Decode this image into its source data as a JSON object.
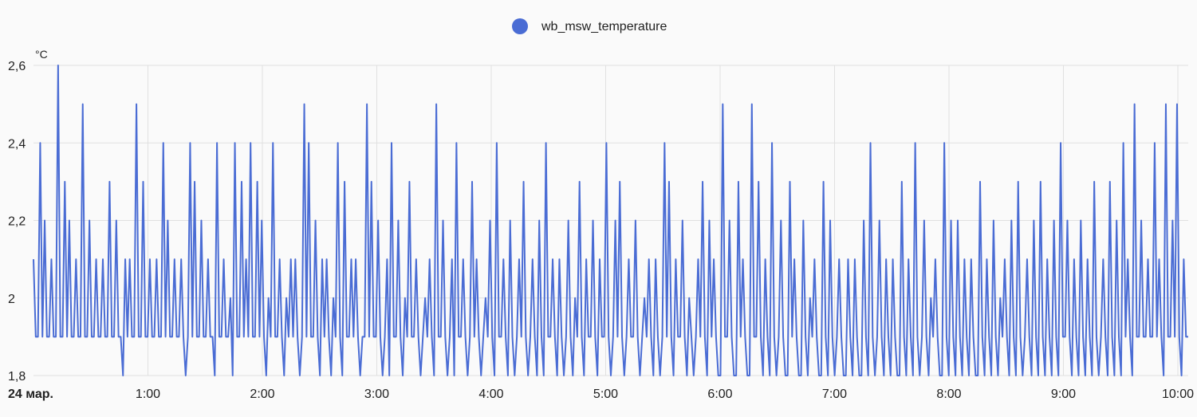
{
  "chart_data": {
    "type": "line",
    "series": [
      {
        "name": "wb_msw_temperature",
        "color": "#4a6cd4",
        "start_time": "00:00",
        "end_time": "10:09",
        "values": [
          2.1,
          1.9,
          1.9,
          2.4,
          1.9,
          2.2,
          1.9,
          1.9,
          2.1,
          1.9,
          1.9,
          2.6,
          1.9,
          1.9,
          2.3,
          1.9,
          2.2,
          1.9,
          1.9,
          2.1,
          1.9,
          1.9,
          2.5,
          1.9,
          1.9,
          2.2,
          1.9,
          1.9,
          2.1,
          1.9,
          1.9,
          2.1,
          1.9,
          1.9,
          2.3,
          1.9,
          1.9,
          2.2,
          1.9,
          1.9,
          1.8,
          2.1,
          1.9,
          2.1,
          1.9,
          1.9,
          2.5,
          1.9,
          1.9,
          2.3,
          1.9,
          1.9,
          2.1,
          1.9,
          1.9,
          2.1,
          1.9,
          1.9,
          2.4,
          1.9,
          2.2,
          1.9,
          1.9,
          2.1,
          1.9,
          1.9,
          2.1,
          1.9,
          1.8,
          1.9,
          2.4,
          1.9,
          2.3,
          1.9,
          1.9,
          2.2,
          1.9,
          1.9,
          2.1,
          1.9,
          1.9,
          1.8,
          2.4,
          1.9,
          1.9,
          2.1,
          1.9,
          1.9,
          2,
          1.8,
          2.4,
          1.9,
          1.9,
          2.3,
          1.9,
          2.1,
          1.9,
          2.4,
          1.9,
          1.9,
          2.3,
          1.9,
          2.2,
          1.9,
          1.8,
          2,
          1.9,
          2.4,
          1.9,
          1.9,
          2.1,
          1.9,
          1.8,
          2,
          1.9,
          2.1,
          1.9,
          2.1,
          1.9,
          1.8,
          1.9,
          2.5,
          1.9,
          2.4,
          1.9,
          1.9,
          2.2,
          1.9,
          1.8,
          2.1,
          1.9,
          2.1,
          1.9,
          1.8,
          2,
          1.9,
          2.4,
          1.9,
          1.8,
          2.3,
          1.9,
          1.9,
          2.1,
          1.9,
          2.1,
          1.9,
          1.8,
          1.9,
          1.9,
          2.5,
          1.9,
          2.3,
          1.9,
          1.9,
          2.2,
          1.9,
          1.8,
          1.9,
          2.1,
          1.8,
          2.4,
          1.9,
          1.9,
          2.2,
          1.9,
          1.8,
          2,
          1.9,
          2.3,
          1.9,
          1.9,
          2.1,
          1.9,
          1.8,
          1.9,
          2,
          1.9,
          2.1,
          1.9,
          1.8,
          2.5,
          1.9,
          1.9,
          2.2,
          1.9,
          1.8,
          1.9,
          2.1,
          1.8,
          2.4,
          1.9,
          1.9,
          2.1,
          1.9,
          1.8,
          1.9,
          2.3,
          1.9,
          2.1,
          1.9,
          1.8,
          1.9,
          2,
          1.9,
          2.2,
          1.9,
          1.8,
          2.4,
          1.9,
          1.9,
          2.1,
          1.9,
          1.8,
          2.2,
          1.9,
          1.8,
          1.9,
          2.1,
          1.9,
          2.3,
          1.9,
          1.8,
          1.9,
          2.1,
          1.9,
          1.8,
          2.2,
          1.9,
          1.8,
          2.4,
          1.9,
          1.9,
          2.1,
          1.9,
          1.8,
          2.1,
          1.9,
          1.8,
          1.9,
          2.2,
          1.9,
          1.8,
          2,
          1.9,
          2.3,
          1.9,
          1.8,
          2.1,
          1.9,
          1.9,
          2.2,
          1.9,
          1.8,
          2.1,
          1.9,
          1.9,
          2.4,
          1.9,
          1.8,
          1.9,
          2.2,
          1.9,
          2.3,
          1.9,
          1.8,
          1.9,
          2.1,
          1.9,
          1.9,
          2.2,
          1.9,
          1.8,
          1.9,
          2,
          1.9,
          2.1,
          1.9,
          1.8,
          2.1,
          1.9,
          1.8,
          1.9,
          2.4,
          1.9,
          2.3,
          1.9,
          1.8,
          2.1,
          1.9,
          1.9,
          2.2,
          1.9,
          1.8,
          2,
          1.9,
          1.8,
          1.9,
          2.1,
          1.9,
          2.3,
          1.9,
          1.8,
          2.2,
          1.9,
          2.1,
          1.9,
          1.8,
          1.8,
          2.5,
          1.9,
          1.9,
          2.2,
          1.9,
          1.8,
          1.8,
          2.3,
          1.9,
          2.1,
          1.9,
          1.8,
          1.8,
          2.5,
          1.9,
          1.9,
          2.3,
          1.9,
          1.8,
          2.1,
          1.9,
          1.8,
          2.4,
          1.9,
          1.8,
          1.9,
          2.2,
          1.9,
          1.8,
          1.8,
          2.3,
          1.9,
          2.1,
          1.9,
          1.8,
          1.8,
          2.2,
          1.9,
          1.8,
          2,
          1.9,
          2.1,
          1.9,
          1.8,
          1.8,
          2.3,
          1.9,
          1.8,
          2.2,
          1.9,
          1.8,
          1.9,
          2.1,
          1.9,
          1.8,
          1.8,
          2.1,
          1.9,
          1.8,
          2.1,
          1.9,
          1.8,
          1.8,
          2.2,
          1.9,
          1.8,
          2.4,
          1.9,
          1.8,
          1.9,
          2.2,
          1.9,
          1.8,
          2.1,
          1.9,
          1.8,
          2.1,
          1.9,
          1.8,
          1.8,
          2.3,
          1.9,
          1.8,
          2.1,
          1.9,
          1.8,
          2.4,
          1.9,
          1.8,
          1.9,
          2.2,
          1.9,
          1.8,
          2,
          1.9,
          2.1,
          1.9,
          1.8,
          1.8,
          2.4,
          1.9,
          1.8,
          2.2,
          1.9,
          1.8,
          2.2,
          1.9,
          1.8,
          2.1,
          1.9,
          1.8,
          2.1,
          1.9,
          1.8,
          1.8,
          2.3,
          1.9,
          1.8,
          2.1,
          1.9,
          1.8,
          2.2,
          1.9,
          1.8,
          2,
          1.9,
          2.1,
          1.9,
          1.8,
          2.2,
          1.9,
          1.8,
          2.3,
          1.9,
          1.8,
          1.9,
          2.1,
          1.9,
          1.8,
          2.2,
          1.9,
          1.8,
          2.3,
          1.9,
          1.8,
          2.1,
          1.9,
          1.8,
          2.2,
          1.9,
          1.8,
          2.4,
          1.9,
          1.9,
          2.2,
          1.9,
          1.8,
          2.1,
          1.9,
          1.8,
          2.2,
          1.9,
          1.8,
          2.1,
          1.9,
          1.8,
          2.3,
          1.9,
          1.8,
          1.9,
          2.1,
          1.9,
          1.8,
          2.3,
          1.9,
          1.8,
          2.2,
          1.9,
          1.8,
          2.4,
          1.9,
          2.1,
          1.9,
          1.8,
          2.5,
          1.9,
          1.9,
          2.2,
          1.9,
          1.9,
          2.1,
          1.9,
          1.9,
          2.4,
          1.9,
          2.1,
          1.9,
          1.8,
          2.5,
          1.9,
          1.9,
          2.2,
          1.9,
          2.5,
          1.9,
          1.8,
          2.1,
          1.9,
          1.9
        ],
        "peaks_note": ""
      }
    ],
    "xlabel": "",
    "ylabel": "°C",
    "ylim": [
      1.8,
      2.6
    ],
    "yticks": [
      "1,8",
      "2",
      "2,2",
      "2,4",
      "2,6"
    ],
    "ytick_values": [
      1.8,
      2.0,
      2.2,
      2.4,
      2.6
    ],
    "xticks": [
      "24 мар.",
      "1:00",
      "2:00",
      "3:00",
      "4:00",
      "5:00",
      "6:00",
      "7:00",
      "8:00",
      "9:00",
      "10:00"
    ],
    "xtick_hours": [
      0,
      1,
      2,
      3,
      4,
      5,
      6,
      7,
      8,
      9,
      10
    ],
    "xlim_hours": [
      0,
      10.15
    ],
    "grid": true,
    "legend_position": "top-center"
  }
}
